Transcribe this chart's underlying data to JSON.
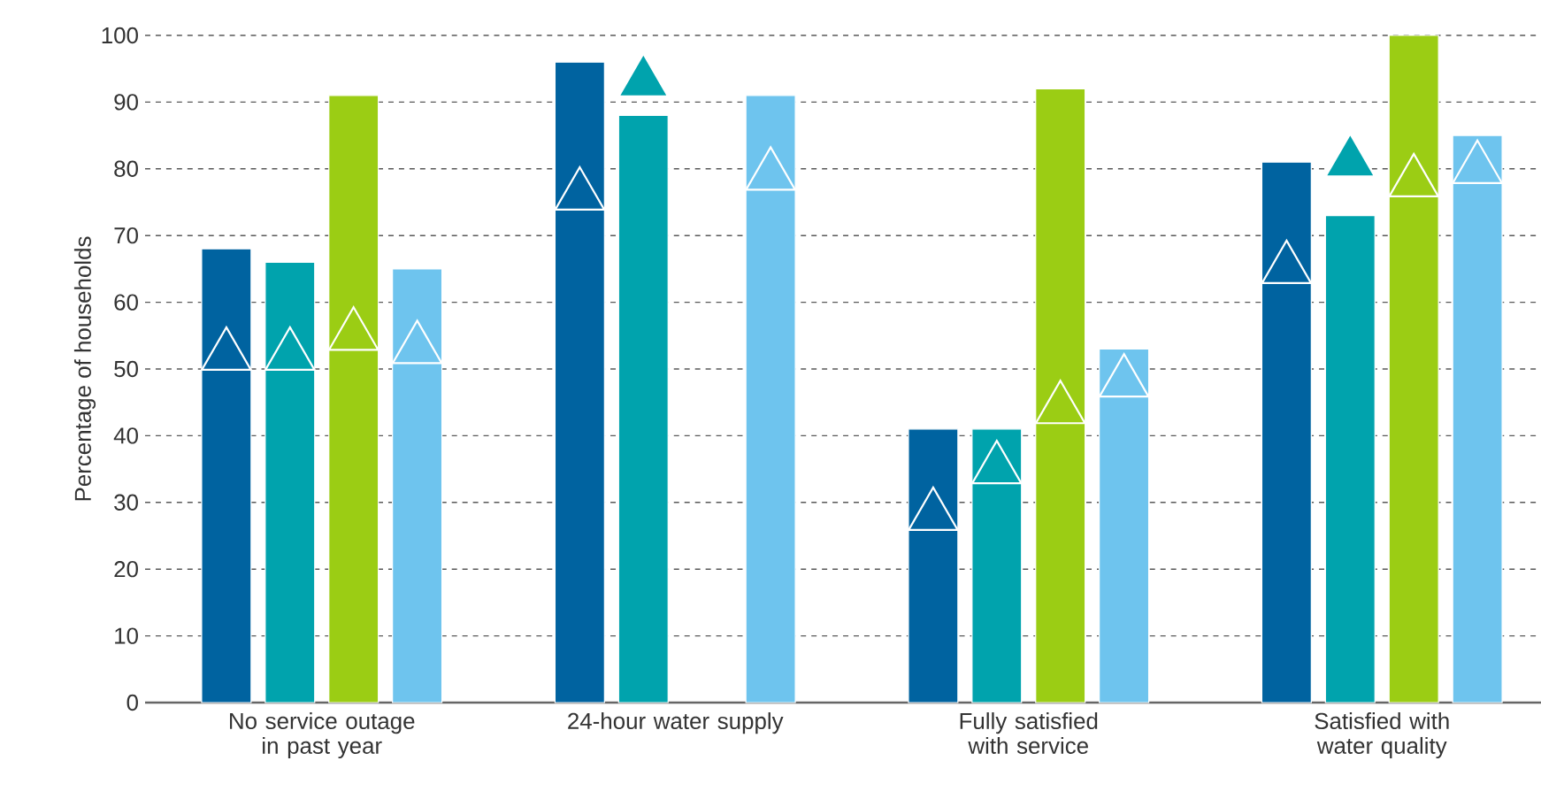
{
  "chart_data": {
    "type": "bar",
    "ylabel": "Percentage of households",
    "categories": [
      "No service outage in past year",
      "24-hour water supply",
      "Fully satisfied with service",
      "Satisfied with water quality"
    ],
    "ylim": [
      0,
      100
    ],
    "yticks": [
      0,
      10,
      20,
      30,
      40,
      50,
      60,
      70,
      80,
      90,
      100
    ],
    "grid": "y",
    "series": [
      {
        "color": "#0063a0",
        "values": [
          68,
          96,
          41,
          81
        ]
      },
      {
        "color": "#00a3ad",
        "values": [
          66,
          88,
          41,
          73
        ]
      },
      {
        "color": "#9bcd14",
        "values": [
          91,
          null,
          92,
          100
        ]
      },
      {
        "color": "#6ec4ee",
        "values": [
          65,
          91,
          53,
          85
        ]
      },
      {
        "type": "scatter",
        "marker": "triangle",
        "color": "#0063a0",
        "x": [
          "No service outage in past year",
          "24-hour water supply",
          "Fully satisfied with service",
          "Satisfied with water quality"
        ],
        "values": [
          52,
          76,
          28,
          65
        ]
      },
      {
        "type": "scatter",
        "marker": "triangle",
        "color": "#00a3ad",
        "x": [
          "No service outage in past year",
          "24-hour water supply",
          "Fully satisfied with service",
          "Satisfied with water quality"
        ],
        "values": [
          52,
          93,
          35,
          81
        ]
      },
      {
        "type": "scatter",
        "marker": "triangle",
        "color": "#9bcd14",
        "x": [
          "No service outage in past year",
          "24-hour water supply",
          "Fully satisfied with service",
          "Satisfied with water quality"
        ],
        "values": [
          55,
          null,
          44,
          78
        ]
      },
      {
        "type": "scatter",
        "marker": "triangle",
        "color": "#6ec4ee",
        "x": [
          "No service outage in past year",
          "24-hour water supply",
          "Fully satisfied with service",
          "Satisfied with water quality"
        ],
        "values": [
          53,
          79,
          48,
          80
        ]
      }
    ]
  }
}
